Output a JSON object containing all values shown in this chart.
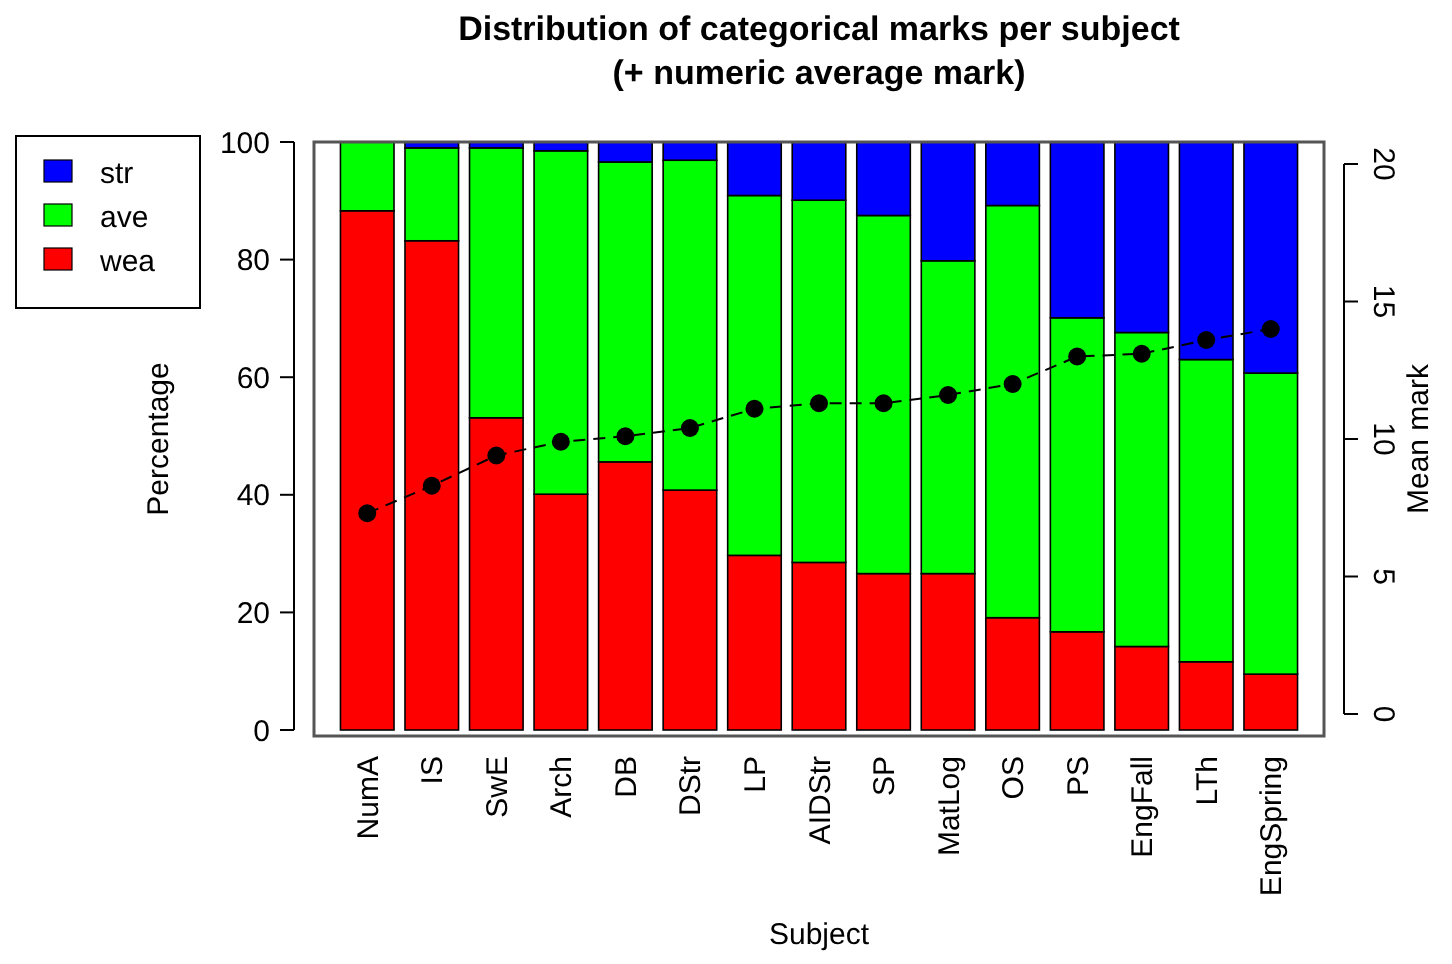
{
  "chart_data": {
    "type": "bar",
    "title": "Distribution of categorical marks per subject\n(+ numeric average mark)",
    "xlabel": "Subject",
    "ylabel": "Percentage",
    "y2label": "Mean mark",
    "categories": [
      "NumA",
      "IS",
      "SwE",
      "Arch",
      "DB",
      "DStr",
      "LP",
      "AIDStr",
      "SP",
      "MatLog",
      "OS",
      "PS",
      "EngFall",
      "LTh",
      "EngSpring"
    ],
    "stacked": true,
    "series": [
      {
        "name": "wea",
        "color": "#ff0000",
        "values": [
          88.3,
          83.2,
          53.1,
          40.1,
          45.6,
          40.8,
          29.7,
          28.5,
          26.6,
          26.6,
          19.1,
          16.7,
          14.2,
          11.6,
          9.5
        ]
      },
      {
        "name": "ave",
        "color": "#00ff00",
        "values": [
          11.7,
          15.8,
          45.9,
          58.4,
          51.0,
          56.1,
          61.2,
          61.6,
          60.9,
          53.2,
          70.1,
          53.4,
          53.4,
          51.4,
          51.2
        ]
      },
      {
        "name": "str",
        "color": "#0000ff",
        "values": [
          0,
          1.0,
          1.0,
          1.5,
          3.4,
          3.1,
          9.1,
          9.9,
          12.5,
          20.2,
          10.8,
          29.9,
          32.4,
          37.0,
          39.3
        ]
      },
      {
        "type": "line",
        "axis": "y2",
        "color": "#000000",
        "marker": "circle",
        "line_style": "dashed",
        "values": [
          7.3,
          8.3,
          9.4,
          9.9,
          10.1,
          10.4,
          11.1,
          11.3,
          11.3,
          11.6,
          12.0,
          13.0,
          13.1,
          13.6,
          14.0
        ]
      }
    ],
    "ylim": [
      0,
      100
    ],
    "yticks": [
      0,
      20,
      40,
      60,
      80,
      100
    ],
    "y2lim": [
      -0.8,
      20.8
    ],
    "y2ticks": [
      0,
      5,
      10,
      15,
      20
    ],
    "grid": false,
    "legend": "top left"
  }
}
